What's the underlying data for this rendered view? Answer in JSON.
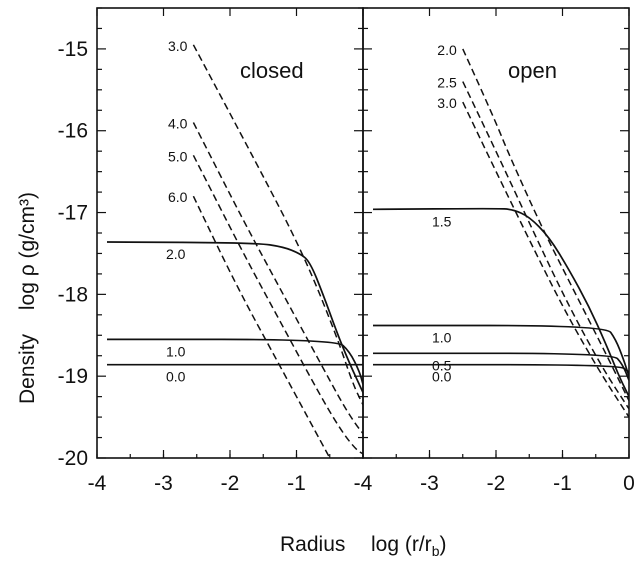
{
  "chart_data": [
    {
      "type": "line",
      "title": "closed",
      "ylabel": "log ρ  (g/cm³)",
      "ylabel_prefix": "Density",
      "xlabel": "Radius",
      "xlim": [
        -4,
        0
      ],
      "ylim": [
        -20,
        -14.5
      ],
      "x_ticks": [
        -4,
        -3,
        -2,
        -1
      ],
      "x_tick_labels": [
        "-4",
        "-3",
        "-2",
        "-1"
      ],
      "y_ticks": [
        -20,
        -19,
        -18,
        -17,
        -16,
        -15
      ],
      "y_tick_labels": [
        "-20",
        "-19",
        "-18",
        "-17",
        "-16",
        "-15"
      ],
      "series": [
        {
          "name": "0.0",
          "style": "solid",
          "points": [
            [
              -3.85,
              -18.86
            ],
            [
              0,
              -18.86
            ]
          ]
        },
        {
          "name": "1.0",
          "style": "solid",
          "points": [
            [
              -3.85,
              -18.55
            ],
            [
              -0.4,
              -18.55
            ],
            [
              -0.2,
              -18.7
            ],
            [
              -0.05,
              -18.95
            ],
            [
              0,
              -19.1
            ]
          ]
        },
        {
          "name": "2.0",
          "style": "solid",
          "points": [
            [
              -3.85,
              -17.36
            ],
            [
              -1.6,
              -17.37
            ],
            [
              -1.2,
              -17.42
            ],
            [
              -0.95,
              -17.5
            ],
            [
              -0.8,
              -17.6
            ],
            [
              -0.6,
              -18.0
            ],
            [
              -0.4,
              -18.45
            ],
            [
              -0.2,
              -18.85
            ],
            [
              0,
              -19.2
            ]
          ]
        },
        {
          "name": "3.0",
          "style": "dashed",
          "points": [
            [
              -2.55,
              -14.95
            ],
            [
              -1.6,
              -16.4
            ],
            [
              -0.9,
              -17.5
            ],
            [
              -0.4,
              -18.5
            ],
            [
              -0.15,
              -19.1
            ],
            [
              0,
              -19.35
            ]
          ]
        },
        {
          "name": "4.0",
          "style": "dashed",
          "points": [
            [
              -2.55,
              -15.9
            ],
            [
              -1.8,
              -17.1
            ],
            [
              -1.2,
              -18.0
            ],
            [
              -0.6,
              -18.9
            ],
            [
              -0.3,
              -19.35
            ],
            [
              -0.1,
              -19.6
            ],
            [
              0,
              -19.7
            ]
          ]
        },
        {
          "name": "5.0",
          "style": "dashed",
          "points": [
            [
              -2.55,
              -16.3
            ],
            [
              -1.8,
              -17.5
            ],
            [
              -1.2,
              -18.4
            ],
            [
              -0.6,
              -19.3
            ],
            [
              -0.3,
              -19.7
            ],
            [
              -0.1,
              -19.9
            ],
            [
              0,
              -19.95
            ]
          ]
        },
        {
          "name": "6.0",
          "style": "dashed",
          "points": [
            [
              -2.55,
              -16.8
            ],
            [
              -1.9,
              -17.9
            ],
            [
              -1.3,
              -18.8
            ],
            [
              -0.8,
              -19.55
            ],
            [
              -0.5,
              -20.0
            ]
          ]
        }
      ]
    },
    {
      "type": "line",
      "title": "open",
      "xlabel": "log (r/r",
      "xlabel_subscript": "b",
      "xlabel_suffix": ")",
      "xlim": [
        -4,
        0
      ],
      "ylim": [
        -20,
        -14.5
      ],
      "x_ticks": [
        -4,
        -3,
        -2,
        -1,
        0
      ],
      "x_tick_labels": [
        "-4",
        "-3",
        "-2",
        "-1",
        "0"
      ],
      "series": [
        {
          "name": "0.0",
          "style": "solid",
          "points": [
            [
              -3.85,
              -18.86
            ],
            [
              -0.15,
              -18.86
            ],
            [
              0,
              -18.95
            ]
          ]
        },
        {
          "name": "0.5",
          "style": "solid",
          "points": [
            [
              -3.85,
              -18.72
            ],
            [
              -0.25,
              -18.72
            ],
            [
              -0.1,
              -18.85
            ],
            [
              0,
              -19.05
            ]
          ]
        },
        {
          "name": "1.0",
          "style": "solid",
          "points": [
            [
              -3.85,
              -18.38
            ],
            [
              -0.35,
              -18.38
            ],
            [
              -0.2,
              -18.55
            ],
            [
              -0.08,
              -18.8
            ],
            [
              0,
              -19.0
            ]
          ]
        },
        {
          "name": "1.5",
          "style": "solid",
          "points": [
            [
              -3.85,
              -16.96
            ],
            [
              -2.0,
              -16.95
            ],
            [
              -1.75,
              -16.96
            ],
            [
              -1.5,
              -17.05
            ],
            [
              -1.2,
              -17.3
            ],
            [
              -0.9,
              -17.7
            ],
            [
              -0.6,
              -18.15
            ],
            [
              -0.35,
              -18.6
            ],
            [
              -0.15,
              -19.0
            ],
            [
              0,
              -19.25
            ]
          ]
        },
        {
          "name": "2.0",
          "style": "dashed",
          "points": [
            [
              -2.5,
              -15.0
            ],
            [
              -2.0,
              -15.9
            ],
            [
              -1.8,
              -16.3
            ],
            [
              -1.3,
              -17.2
            ],
            [
              -0.8,
              -18.0
            ],
            [
              -0.3,
              -18.8
            ],
            [
              0,
              -19.3
            ]
          ]
        },
        {
          "name": "2.5",
          "style": "dashed",
          "points": [
            [
              -2.5,
              -15.4
            ],
            [
              -2.0,
              -16.25
            ],
            [
              -1.4,
              -17.3
            ],
            [
              -0.9,
              -18.15
            ],
            [
              -0.4,
              -18.9
            ],
            [
              0,
              -19.4
            ]
          ]
        },
        {
          "name": "3.0",
          "style": "dashed",
          "points": [
            [
              -2.5,
              -15.65
            ],
            [
              -2.0,
              -16.5
            ],
            [
              -1.4,
              -17.5
            ],
            [
              -0.9,
              -18.3
            ],
            [
              -0.4,
              -19.0
            ],
            [
              0,
              -19.5
            ]
          ]
        }
      ]
    }
  ]
}
